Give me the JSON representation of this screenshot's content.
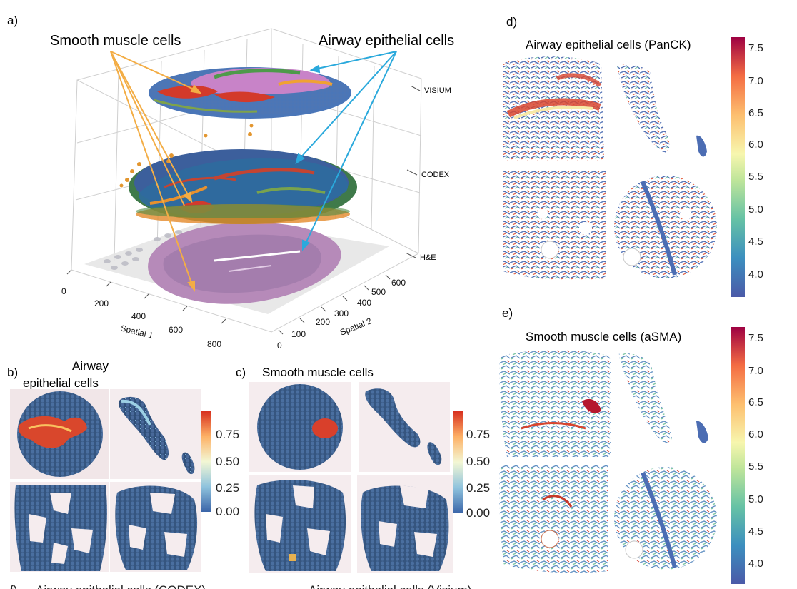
{
  "panel_a": {
    "label": "a)",
    "callout_left": "Smooth muscle cells",
    "callout_right": "Airway epithelial cells",
    "layers": [
      "VISIUM",
      "CODEX",
      "H&E"
    ],
    "x_ticks": [
      "0",
      "200",
      "400",
      "600",
      "800"
    ],
    "y_ticks": [
      "0",
      "100",
      "200",
      "300",
      "400",
      "500",
      "600"
    ],
    "x_label": "Spatial 1",
    "y_label": "Spatial 2"
  },
  "panel_b": {
    "label": "b)",
    "title_line1": "Airway",
    "title_line2": "epithelial cells",
    "colorbar_ticks": [
      "0.75",
      "0.50",
      "0.25",
      "0.00"
    ]
  },
  "panel_c": {
    "label": "c)",
    "title": "Smooth muscle cells",
    "colorbar_ticks": [
      "0.75",
      "0.50",
      "0.25",
      "0.00"
    ]
  },
  "panel_d": {
    "label": "d)",
    "title": "Airway epithelial cells (PanCK)",
    "colorbar_ticks": [
      "7.5",
      "7.0",
      "6.5",
      "6.0",
      "5.5",
      "5.0",
      "4.5",
      "4.0"
    ]
  },
  "panel_e": {
    "label": "e)",
    "title": "Smooth muscle cells (aSMA)",
    "colorbar_ticks": [
      "7.5",
      "7.0",
      "6.5",
      "6.0",
      "5.5",
      "5.0",
      "4.5",
      "4.0"
    ]
  },
  "panel_f": {
    "label": "f)",
    "title_left": "Airway epithelial cells (CODEX)",
    "title_right": "Airway epithelial cells (Visium)"
  },
  "colors": {
    "smooth_arrow": "#f3ad45",
    "epithelial_arrow": "#2aa9dc",
    "visium_blue": "#4a76b8",
    "spot_blue": "#3f5f8f",
    "he_pink": "#b98cbd"
  }
}
